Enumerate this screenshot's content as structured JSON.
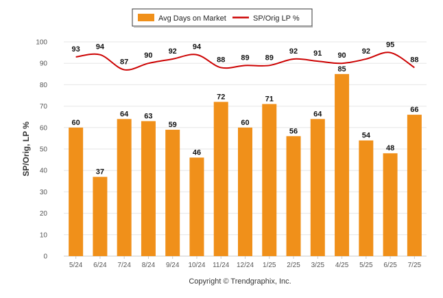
{
  "chart_data": {
    "type": "bar",
    "categories": [
      "5/24",
      "6/24",
      "7/24",
      "8/24",
      "9/24",
      "10/24",
      "11/24",
      "12/24",
      "1/25",
      "2/25",
      "3/25",
      "4/25",
      "5/25",
      "6/25",
      "7/25"
    ],
    "series": [
      {
        "name": "Avg Days on Market",
        "type": "bar",
        "color": "#F0901A",
        "values": [
          60,
          37,
          64,
          63,
          59,
          46,
          72,
          60,
          71,
          56,
          64,
          85,
          54,
          48,
          66
        ]
      },
      {
        "name": "SP/Orig LP %",
        "type": "line",
        "color": "#CC0000",
        "values": [
          93,
          94,
          87,
          90,
          92,
          94,
          88,
          89,
          89,
          92,
          91,
          90,
          92,
          95,
          88
        ]
      }
    ],
    "ylabel": "SP/Orig, LP %",
    "ylim": [
      0,
      100
    ],
    "yticks": [
      0,
      10,
      20,
      30,
      40,
      50,
      60,
      70,
      80,
      90,
      100
    ],
    "grid": true,
    "legend_position": "top-center"
  },
  "footer": {
    "credit": "Copyright © Trendgraphix, Inc."
  }
}
